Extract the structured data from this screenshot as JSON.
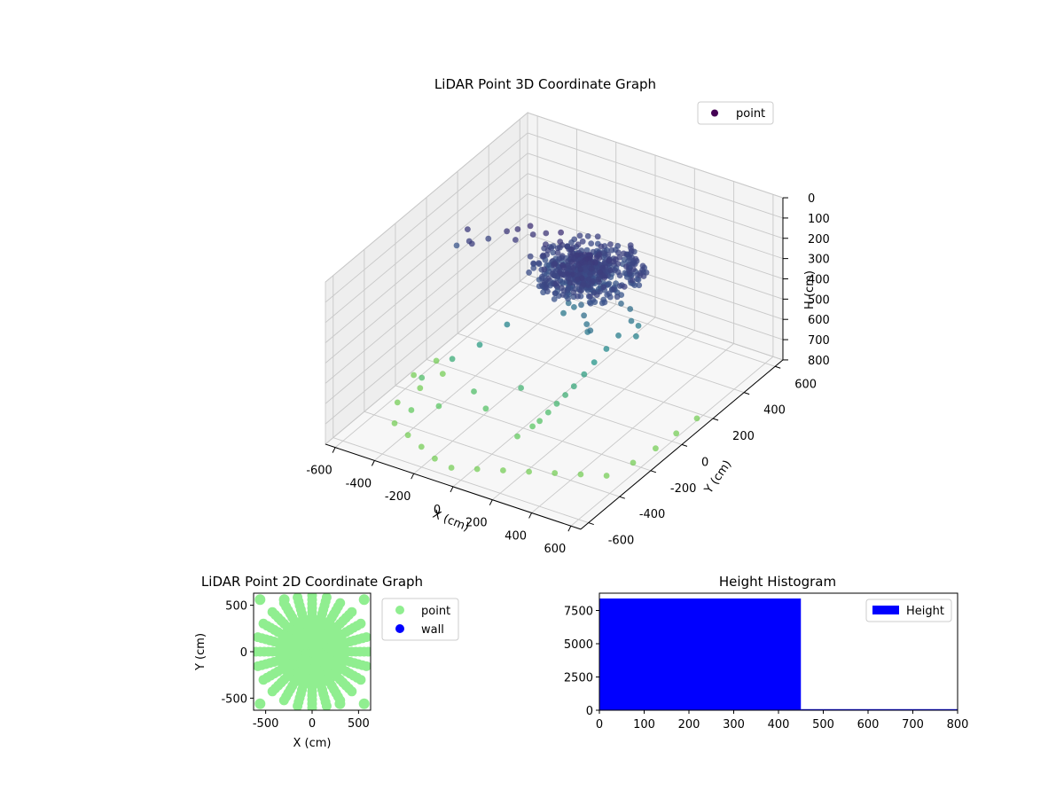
{
  "chart_data": [
    {
      "type": "scatter3d",
      "title": "LiDAR Point 3D Coordinate Graph",
      "xlabel": "X (cm)",
      "ylabel": "Y (cm)",
      "zlabel": "H (cm)",
      "xlim": [
        -650,
        650
      ],
      "ylim": [
        -650,
        650
      ],
      "zlim": [
        800,
        0
      ],
      "x_ticks": [
        -600,
        -400,
        -200,
        0,
        200,
        400,
        600
      ],
      "y_ticks": [
        -600,
        -400,
        -200,
        0,
        200,
        400,
        600
      ],
      "z_ticks": [
        0,
        100,
        200,
        300,
        400,
        500,
        600,
        700,
        800
      ],
      "z_inverted": true,
      "colormap": "viridis",
      "legend": {
        "label": "point",
        "placement": "top-right",
        "marker_color": "#440154"
      },
      "series": [
        {
          "name": "point",
          "note_dense_cluster_center": {
            "x": 50,
            "y": 150,
            "h": 230
          },
          "points": [
            [
              -520,
              100,
              180
            ],
            [
              -480,
              60,
              200
            ],
            [
              -450,
              40,
              190
            ],
            [
              -430,
              120,
              210
            ],
            [
              -560,
              80,
              260
            ],
            [
              -360,
              150,
              170
            ],
            [
              -320,
              170,
              160
            ],
            [
              -300,
              130,
              180
            ],
            [
              -280,
              200,
              150
            ],
            [
              -250,
              180,
              170
            ],
            [
              -200,
              200,
              160
            ],
            [
              -170,
              160,
              180
            ],
            [
              -140,
              220,
              150
            ],
            [
              -120,
              190,
              170
            ],
            [
              -100,
              210,
              200
            ],
            [
              -80,
              150,
              210
            ],
            [
              -60,
              230,
              190
            ],
            [
              -40,
              180,
              220
            ],
            [
              -20,
              160,
              240
            ],
            [
              0,
              200,
              220
            ],
            [
              20,
              170,
              250
            ],
            [
              40,
              210,
              230
            ],
            [
              60,
              150,
              260
            ],
            [
              80,
              190,
              240
            ],
            [
              100,
              170,
              270
            ],
            [
              120,
              130,
              250
            ],
            [
              140,
              200,
              230
            ],
            [
              160,
              150,
              260
            ],
            [
              180,
              120,
              240
            ],
            [
              200,
              170,
              220
            ],
            [
              -30,
              120,
              300
            ],
            [
              -10,
              100,
              330
            ],
            [
              10,
              80,
              360
            ],
            [
              0,
              60,
              400
            ],
            [
              30,
              90,
              380
            ],
            [
              90,
              60,
              330
            ],
            [
              120,
              40,
              360
            ],
            [
              150,
              20,
              380
            ],
            [
              170,
              0,
              400
            ],
            [
              200,
              -20,
              370
            ],
            [
              230,
              140,
              330
            ],
            [
              260,
              160,
              360
            ],
            [
              290,
              130,
              390
            ],
            [
              310,
              150,
              420
            ],
            [
              330,
              110,
              440
            ],
            [
              280,
              60,
              420
            ],
            [
              250,
              20,
              470
            ],
            [
              220,
              -20,
              520
            ],
            [
              200,
              -60,
              560
            ],
            [
              180,
              -100,
              600
            ],
            [
              160,
              -130,
              630
            ],
            [
              140,
              -160,
              660
            ],
            [
              120,
              -190,
              690
            ],
            [
              100,
              -220,
              720
            ],
            [
              80,
              -240,
              740
            ],
            [
              -200,
              -50,
              450
            ],
            [
              -300,
              -100,
              550
            ],
            [
              -400,
              -150,
              620
            ],
            [
              -500,
              -220,
              700
            ],
            [
              -450,
              -350,
              760
            ],
            [
              -350,
              -300,
              740
            ],
            [
              -250,
              -200,
              700
            ],
            [
              -150,
              -250,
              720
            ],
            [
              -50,
              -150,
              650
            ],
            [
              50,
              -300,
              760
            ],
            [
              -480,
              -420,
              790
            ],
            [
              -380,
              -460,
              790
            ],
            [
              -280,
              -500,
              790
            ],
            [
              -180,
              -540,
              790
            ],
            [
              -80,
              -560,
              790
            ],
            [
              20,
              -520,
              790
            ],
            [
              120,
              -480,
              790
            ],
            [
              220,
              -440,
              790
            ],
            [
              320,
              -400,
              790
            ],
            [
              420,
              -360,
              790
            ],
            [
              520,
              -320,
              790
            ],
            [
              560,
              -200,
              790
            ],
            [
              580,
              -80,
              790
            ],
            [
              590,
              40,
              790
            ],
            [
              600,
              160,
              790
            ],
            [
              -560,
              -300,
              790
            ],
            [
              -540,
              -180,
              790
            ],
            [
              -520,
              -60,
              790
            ],
            [
              -600,
              0,
              790
            ],
            [
              -620,
              -120,
              790
            ]
          ]
        }
      ]
    },
    {
      "type": "scatter",
      "title": "LiDAR Point 2D Coordinate Graph",
      "xlabel": "X (cm)",
      "ylabel": "Y (cm)",
      "xlim": [
        -630,
        630
      ],
      "ylim": [
        -630,
        630
      ],
      "x_ticks": [
        -500,
        0,
        500
      ],
      "y_ticks": [
        -500,
        0,
        500
      ],
      "legend": {
        "placement": "outside-right"
      },
      "series": [
        {
          "name": "point",
          "color": "#90ee90",
          "rays_deg": [
            0,
            15,
            30,
            45,
            60,
            75,
            90,
            105,
            120,
            135,
            150,
            165,
            180,
            195,
            210,
            225,
            240,
            255,
            270,
            285,
            300,
            315,
            330,
            345
          ],
          "ray_max_radius": 620
        },
        {
          "name": "wall",
          "color": "#0000ff",
          "points": []
        }
      ]
    },
    {
      "type": "histogram",
      "title": "Height Histogram",
      "xlabel": "",
      "ylabel": "",
      "xlim": [
        0,
        800
      ],
      "ylim": [
        0,
        8800
      ],
      "x_ticks": [
        0,
        100,
        200,
        300,
        400,
        500,
        600,
        700,
        800
      ],
      "y_ticks": [
        0,
        2500,
        5000,
        7500
      ],
      "legend": {
        "label": "Height",
        "placement": "top-right"
      },
      "color": "#0000ff",
      "bins": [
        {
          "start": 0,
          "end": 450,
          "count": 8400
        },
        {
          "start": 450,
          "end": 800,
          "count": 60
        }
      ]
    }
  ]
}
